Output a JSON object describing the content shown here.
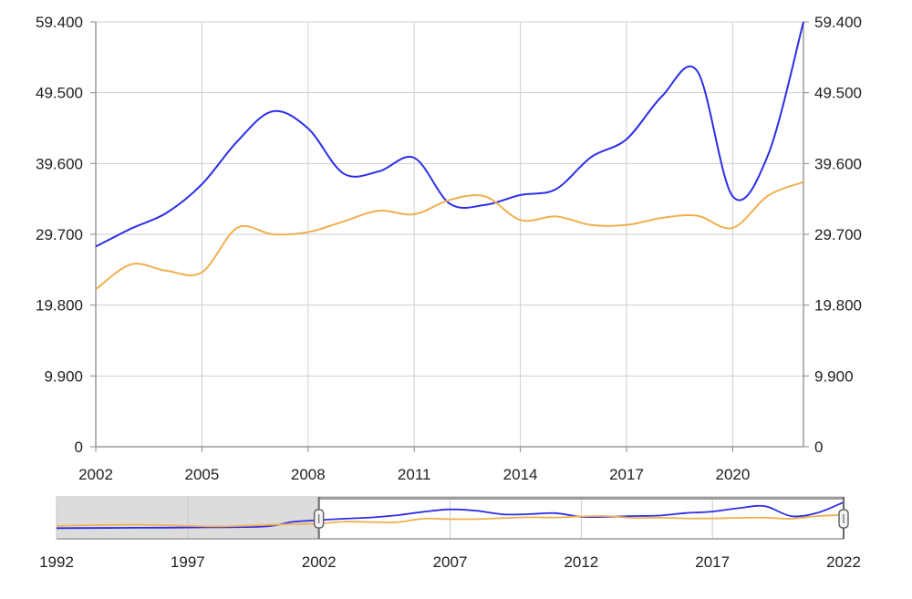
{
  "chart_data": {
    "type": "line",
    "x": [
      2002,
      2003,
      2004,
      2005,
      2006,
      2007,
      2008,
      2009,
      2010,
      2011,
      2012,
      2013,
      2014,
      2015,
      2016,
      2017,
      2018,
      2019,
      2020,
      2021,
      2022
    ],
    "series": [
      {
        "color": "#2e2ee8",
        "values": [
          28.0,
          30.5,
          32.7,
          36.7,
          42.7,
          46.9,
          44.5,
          38.2,
          38.5,
          40.4,
          34.0,
          33.8,
          35.2,
          36.0,
          40.5,
          43.0,
          49.0,
          52.5,
          35.0,
          40.8,
          59.4
        ]
      },
      {
        "color": "#f0b050",
        "values": [
          22.0,
          25.5,
          24.6,
          24.4,
          30.6,
          29.7,
          30.0,
          31.5,
          33.0,
          32.5,
          34.5,
          35.0,
          31.7,
          32.2,
          31.0,
          31.0,
          32.0,
          32.3,
          30.6,
          35.1,
          37.0
        ]
      }
    ],
    "xlim": [
      2002,
      2022
    ],
    "ylim": [
      0,
      59.4
    ],
    "y_ticks": [
      "0",
      "9.900",
      "19.800",
      "29.700",
      "39.600",
      "49.500",
      "59.400"
    ],
    "x_tick_labels": [
      "2002",
      "2005",
      "2008",
      "2011",
      "2014",
      "2017",
      "2020"
    ],
    "grid": true,
    "navigator": {
      "xlim": [
        1992,
        2022
      ],
      "tick_labels": [
        "1992",
        "1997",
        "2002",
        "2007",
        "2012",
        "2017",
        "2022"
      ],
      "selected_range": [
        2002,
        2022
      ],
      "series": [
        {
          "color": "#2e2ee8",
          "x": [
            1992,
            1995,
            1998,
            2000,
            2001,
            2002,
            2003,
            2004,
            2005,
            2006,
            2007,
            2008,
            2009,
            2010,
            2011,
            2012,
            2013,
            2014,
            2015,
            2016,
            2017,
            2018,
            2019,
            2020,
            2021,
            2022
          ],
          "values": [
            14.0,
            14.5,
            15.3,
            17.0,
            25.0,
            28.0,
            30.5,
            32.7,
            36.7,
            42.7,
            46.9,
            44.5,
            38.2,
            38.5,
            40.4,
            34.0,
            33.8,
            35.2,
            36.0,
            40.5,
            43.0,
            49.0,
            52.5,
            35.0,
            40.8,
            59.4
          ]
        },
        {
          "color": "#f0b050",
          "x": [
            1992,
            1995,
            1998,
            2000,
            2001,
            2002,
            2003,
            2004,
            2005,
            2006,
            2007,
            2008,
            2009,
            2010,
            2011,
            2012,
            2013,
            2014,
            2015,
            2016,
            2017,
            2018,
            2019,
            2020,
            2021,
            2022
          ],
          "values": [
            18.0,
            20.0,
            17.0,
            19.5,
            21.0,
            22.0,
            25.5,
            24.6,
            24.4,
            30.6,
            29.7,
            30.0,
            31.5,
            33.0,
            32.5,
            34.5,
            35.0,
            31.7,
            32.2,
            31.0,
            31.0,
            32.0,
            32.3,
            30.6,
            35.1,
            37.0
          ]
        }
      ]
    }
  }
}
